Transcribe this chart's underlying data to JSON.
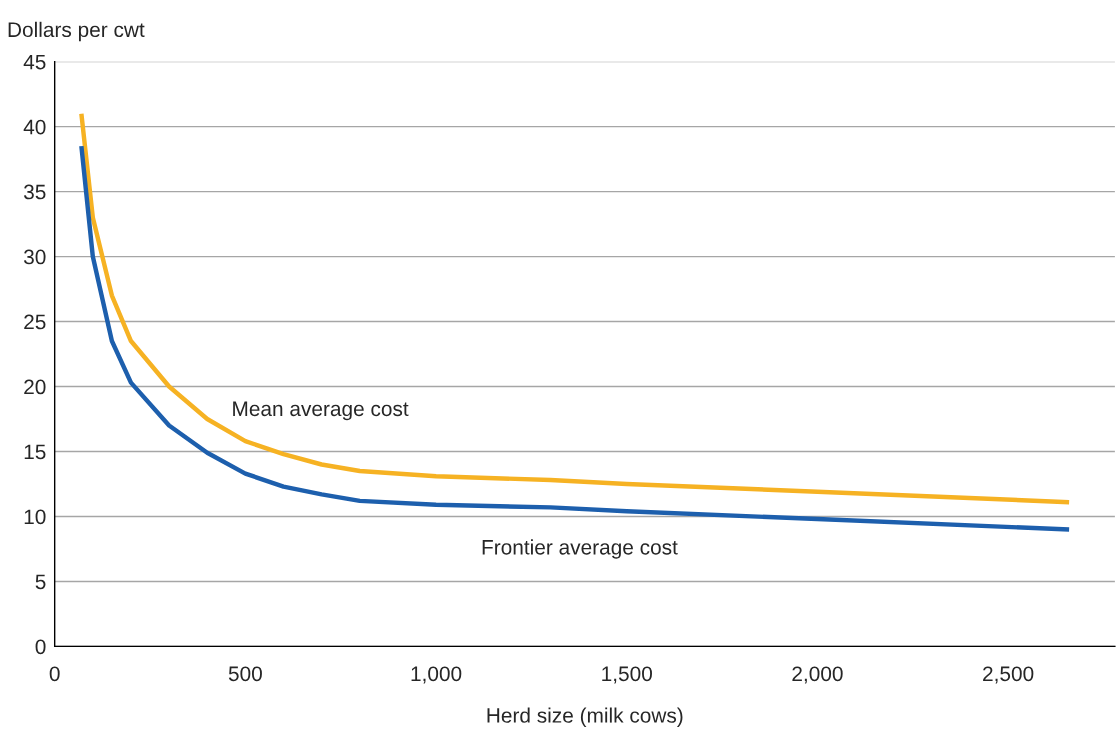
{
  "chart_data": {
    "type": "line",
    "xlabel": "Herd size (milk cows)",
    "ylabel": "Dollars per cwt",
    "xlim": [
      0,
      2780
    ],
    "xticks": [
      0,
      {
        "value": 500,
        "label": "500"
      },
      {
        "value": 1000,
        "label": "1,000"
      },
      {
        "value": 1500,
        "label": "1,500"
      },
      {
        "value": 2000,
        "label": "2,000"
      },
      {
        "value": 2500,
        "label": "2,500"
      }
    ],
    "ylim": [
      0,
      45
    ],
    "yticks": [
      0,
      5,
      10,
      15,
      20,
      25,
      30,
      35,
      40,
      45
    ],
    "grid": "y",
    "legend": false,
    "marker": "none",
    "line_style": "solid",
    "series": [
      {
        "name": "Mean average cost",
        "color": "#f6b223",
        "x": [
          70,
          100,
          150,
          200,
          300,
          400,
          500,
          600,
          700,
          800,
          1000,
          1300,
          1500,
          2000,
          2660
        ],
        "values": [
          41,
          33,
          27,
          23.5,
          20,
          17.5,
          15.8,
          14.8,
          14,
          13.5,
          13.1,
          12.8,
          12.5,
          11.9,
          11.1
        ]
      },
      {
        "name": "Frontier average cost",
        "color": "#1d5fad",
        "x": [
          70,
          100,
          150,
          200,
          300,
          400,
          500,
          600,
          700,
          800,
          1000,
          1300,
          1500,
          2000,
          2660
        ],
        "values": [
          38.5,
          30,
          23.5,
          20.3,
          17,
          14.9,
          13.3,
          12.3,
          11.7,
          11.2,
          10.9,
          10.7,
          10.4,
          9.8,
          9.0
        ]
      }
    ]
  }
}
